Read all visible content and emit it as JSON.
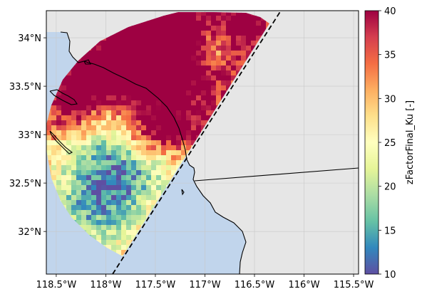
{
  "map": {
    "extent": {
      "lon": [
        -118.6,
        -115.45
      ],
      "lat": [
        31.56,
        34.28
      ]
    },
    "ocean_color": "#c1d5ec",
    "land_color": "#e6e6e6",
    "gridlines": true,
    "x_ticks": [
      {
        "lon": -118.5,
        "label": "118.5°W"
      },
      {
        "lon": -118.0,
        "label": "118°W"
      },
      {
        "lon": -117.5,
        "label": "117.5°W"
      },
      {
        "lon": -117.0,
        "label": "117°W"
      },
      {
        "lon": -116.5,
        "label": "116.5°W"
      },
      {
        "lon": -116.0,
        "label": "116°W"
      },
      {
        "lon": -115.5,
        "label": "115.5°W"
      }
    ],
    "y_ticks": [
      {
        "lat": 32.0,
        "label": "32°N"
      },
      {
        "lat": 32.5,
        "label": "32.5°N"
      },
      {
        "lat": 33.0,
        "label": "33°N"
      },
      {
        "lat": 33.5,
        "label": "33.5°N"
      },
      {
        "lat": 34.0,
        "label": "34°N"
      }
    ],
    "swath_edge_style": "dashed",
    "swath_edge_color": "#000000"
  },
  "colorbar": {
    "label": "zFactorFinal_Ku [-]",
    "min": 10,
    "max": 40,
    "ticks": [
      "10",
      "15",
      "20",
      "25",
      "30",
      "35",
      "40"
    ],
    "colormap": "Spectral_r",
    "colors": [
      "#5e4fa2",
      "#3288bd",
      "#66c2a5",
      "#abdda4",
      "#e6f598",
      "#ffffbf",
      "#fee08b",
      "#fdae61",
      "#f46d43",
      "#d53e4f",
      "#9e0142"
    ]
  }
}
